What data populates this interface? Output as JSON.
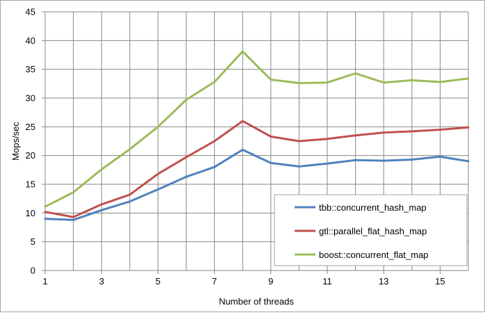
{
  "chart_data": {
    "type": "line",
    "xlabel": "Number of threads",
    "ylabel": "Mops/sec",
    "xlim": [
      1,
      16
    ],
    "ylim": [
      0,
      45
    ],
    "x": [
      1,
      2,
      3,
      4,
      5,
      6,
      7,
      8,
      9,
      10,
      11,
      12,
      13,
      14,
      15,
      16
    ],
    "x_ticks": [
      1,
      3,
      5,
      7,
      9,
      11,
      13,
      15
    ],
    "y_ticks": [
      0,
      5,
      10,
      15,
      20,
      25,
      30,
      35,
      40,
      45
    ],
    "grid": true,
    "legend_position": "bottom-right, inside plot",
    "series": [
      {
        "name": "tbb::concurrent_hash_map",
        "color": "#4f81bd",
        "values": [
          9.0,
          8.8,
          10.5,
          12.0,
          14.1,
          16.3,
          18.0,
          21.0,
          18.7,
          18.1,
          18.6,
          19.2,
          19.1,
          19.3,
          19.8,
          19.0
        ]
      },
      {
        "name": "gtl::parallel_flat_hash_map",
        "color": "#c0504d",
        "values": [
          10.2,
          9.3,
          11.5,
          13.2,
          16.8,
          19.7,
          22.5,
          26.0,
          23.3,
          22.5,
          22.9,
          23.5,
          24.0,
          24.2,
          24.5,
          24.9
        ]
      },
      {
        "name": "boost::concurrent_flat_map",
        "color": "#9bbb59",
        "values": [
          11.1,
          13.6,
          17.6,
          21.1,
          25.0,
          29.7,
          32.8,
          38.1,
          33.2,
          32.6,
          32.7,
          34.3,
          32.7,
          33.1,
          32.8,
          33.4
        ]
      }
    ]
  }
}
